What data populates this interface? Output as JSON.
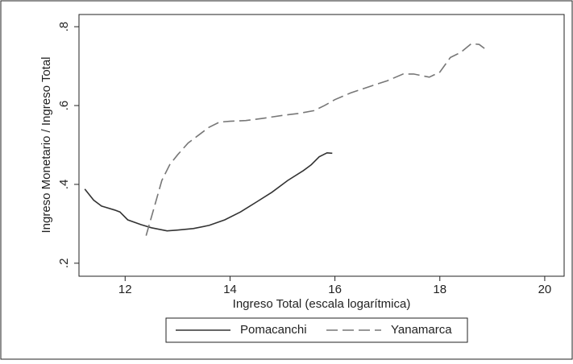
{
  "chart_data": {
    "type": "line",
    "xlabel": "Ingreso Total (escala logarítmica)",
    "ylabel": "Ingreso Monetario / Ingreso Total",
    "xlim": [
      11.12,
      20.37
    ],
    "ylim": [
      0.167,
      0.831
    ],
    "xticks": [
      12,
      14,
      16,
      18,
      20
    ],
    "yticks": [
      {
        "value": 0.2,
        "label": ".2"
      },
      {
        "value": 0.4,
        "label": ".4"
      },
      {
        "value": 0.6,
        "label": ".6"
      },
      {
        "value": 0.8,
        "label": ".8"
      }
    ],
    "grid": false,
    "legend": "bottom",
    "series": [
      {
        "name": "Pomacanchi",
        "color": "#333333",
        "style": "solid",
        "x": [
          11.23,
          11.4,
          11.55,
          11.8,
          11.9,
          12.05,
          12.3,
          12.5,
          12.8,
          13.0,
          13.3,
          13.6,
          13.9,
          14.2,
          14.5,
          14.8,
          15.1,
          15.4,
          15.55,
          15.7,
          15.85,
          15.95
        ],
        "values": [
          0.388,
          0.36,
          0.345,
          0.335,
          0.33,
          0.31,
          0.298,
          0.29,
          0.282,
          0.284,
          0.288,
          0.296,
          0.31,
          0.33,
          0.355,
          0.38,
          0.41,
          0.435,
          0.45,
          0.47,
          0.48,
          0.479
        ]
      },
      {
        "name": "Yanamarca",
        "color": "#777777",
        "style": "dashed",
        "x": [
          12.4,
          12.55,
          12.7,
          12.85,
          13.0,
          13.2,
          13.4,
          13.6,
          13.8,
          14.0,
          14.3,
          14.6,
          15.0,
          15.3,
          15.6,
          15.8,
          16.0,
          16.3,
          16.7,
          17.0,
          17.3,
          17.5,
          17.8,
          18.0,
          18.2,
          18.4,
          18.6,
          18.75,
          18.85
        ],
        "values": [
          0.27,
          0.34,
          0.41,
          0.45,
          0.475,
          0.505,
          0.525,
          0.545,
          0.558,
          0.56,
          0.562,
          0.567,
          0.575,
          0.58,
          0.587,
          0.6,
          0.615,
          0.632,
          0.65,
          0.663,
          0.68,
          0.68,
          0.672,
          0.685,
          0.722,
          0.735,
          0.757,
          0.755,
          0.745
        ]
      }
    ]
  }
}
